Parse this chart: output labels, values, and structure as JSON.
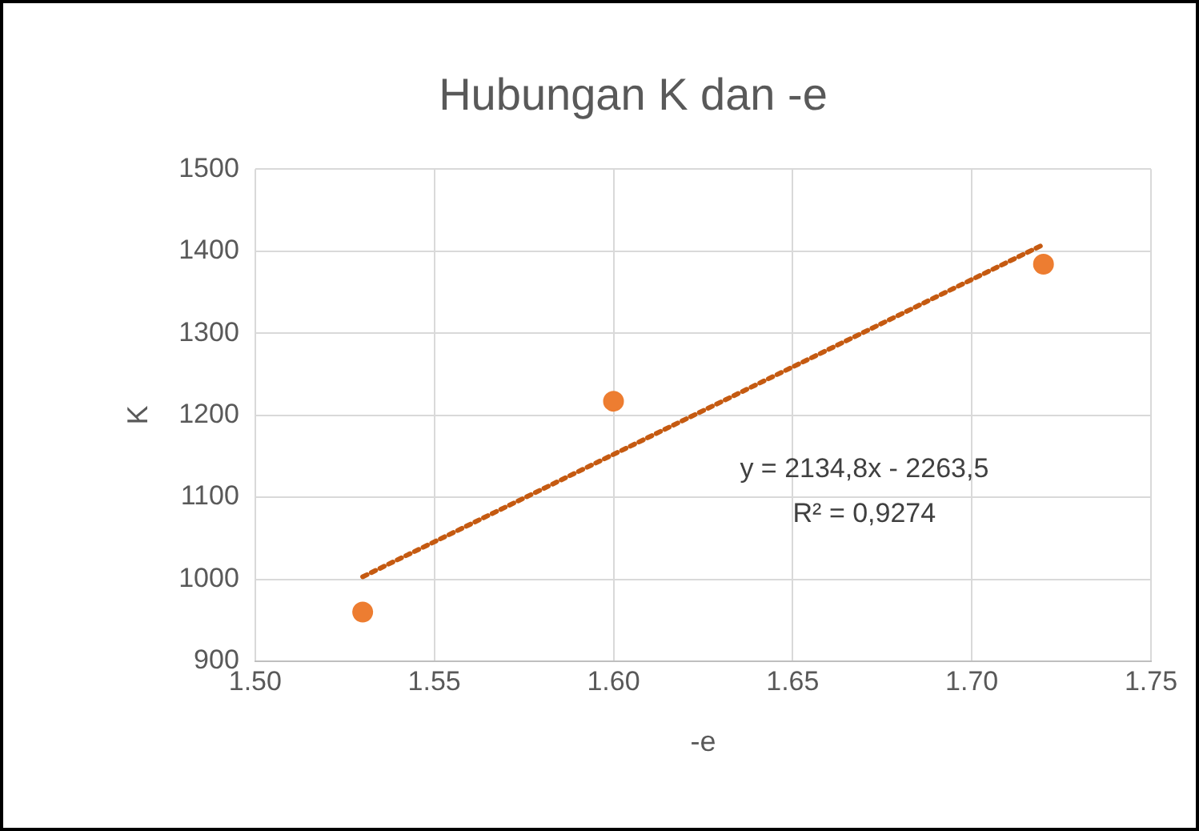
{
  "chart_data": {
    "type": "scatter",
    "title": "Hubungan K dan -e",
    "xlabel": "-e",
    "ylabel": "K",
    "series": [
      {
        "type": "scatter",
        "color": "#ed7d31",
        "marker": "circle",
        "x": [
          1.53,
          1.6,
          1.72
        ],
        "values": [
          960,
          1217,
          1384
        ]
      },
      {
        "type": "line",
        "color": "#c55a11",
        "marker": "none",
        "line_style": "dotted",
        "x": [
          1.53,
          1.72
        ],
        "values": [
          1003,
          1408
        ]
      }
    ],
    "xlim": [
      1.5,
      1.75
    ],
    "xticks": [
      {
        "value": 1.5,
        "label": "1.50"
      },
      {
        "value": 1.55,
        "label": "1.55"
      },
      {
        "value": 1.6,
        "label": "1.60"
      },
      {
        "value": 1.65,
        "label": "1.65"
      },
      {
        "value": 1.7,
        "label": "1.70"
      },
      {
        "value": 1.75,
        "label": "1.75"
      }
    ],
    "ylim": [
      900,
      1500
    ],
    "yticks": [
      900,
      1000,
      1100,
      1200,
      1300,
      1400,
      1500
    ],
    "annotations": [
      "y = 2134,8x - 2263,5",
      "R² = 0,9274"
    ],
    "grid": true,
    "legend": false
  }
}
